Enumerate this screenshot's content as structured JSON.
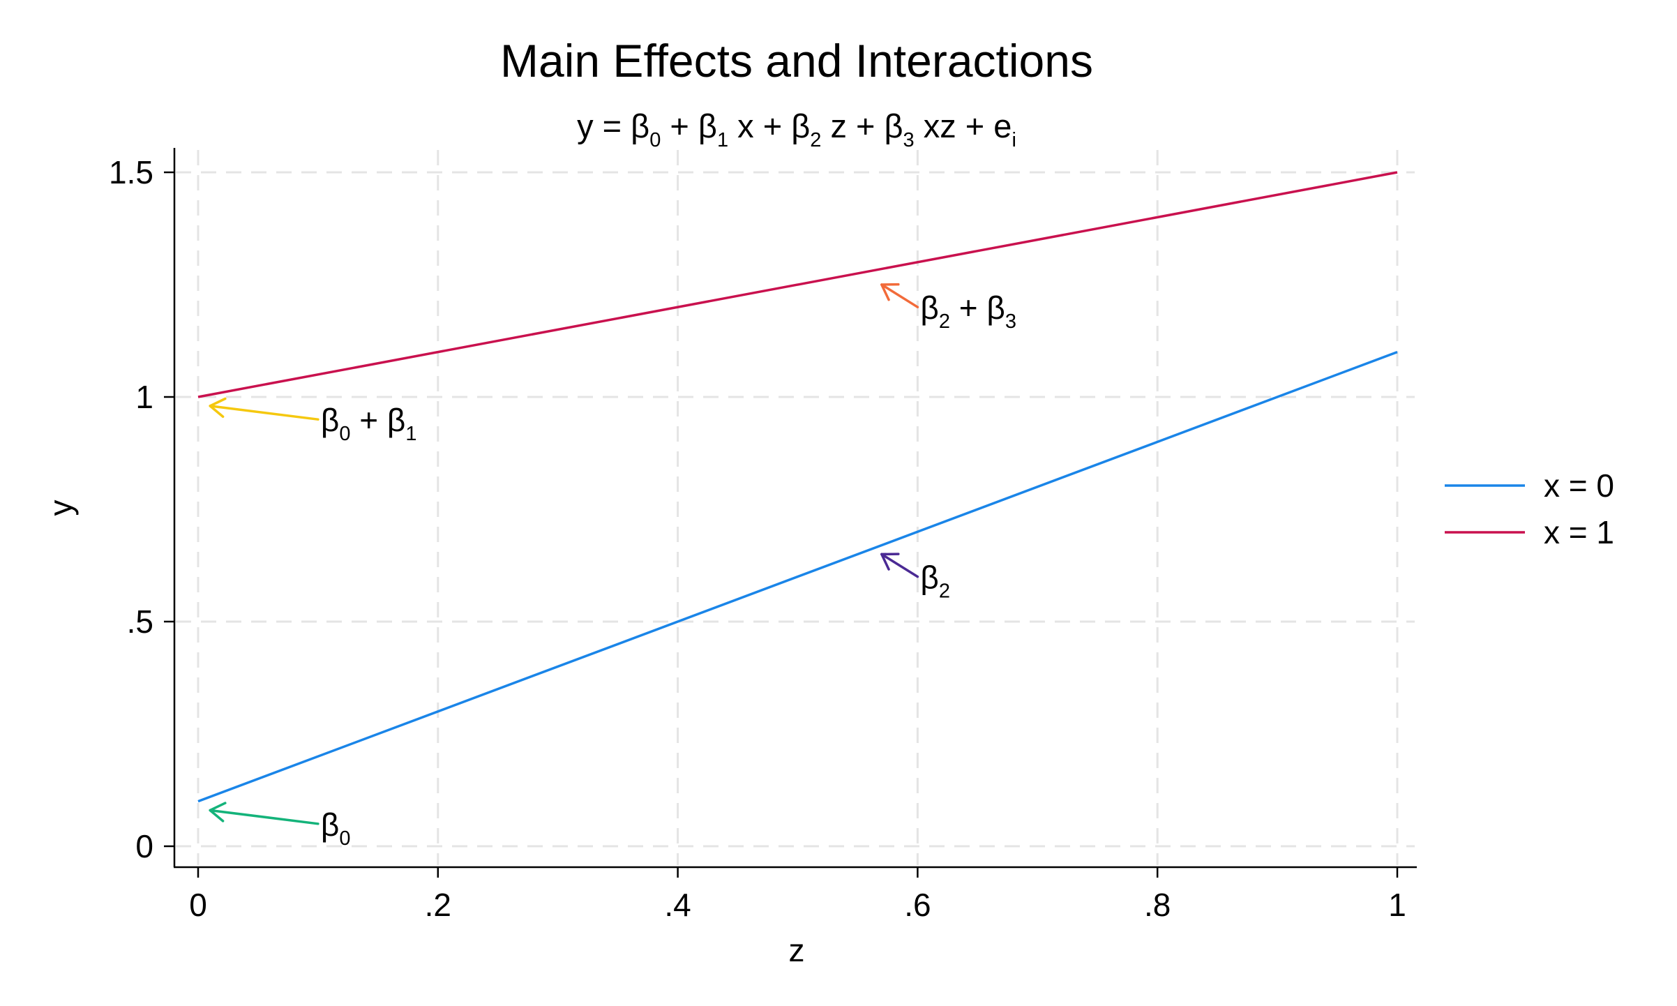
{
  "chart_data": {
    "type": "line",
    "title": "Main Effects and Interactions",
    "subtitle": "y = β0 + β1 x + β2 z + β3 xz + ei",
    "subtitle_parts": [
      {
        "t": "y = β"
      },
      {
        "t": "0",
        "sub": true
      },
      {
        "t": " + β"
      },
      {
        "t": "1",
        "sub": true
      },
      {
        "t": " x + β"
      },
      {
        "t": "2",
        "sub": true
      },
      {
        "t": " z + β"
      },
      {
        "t": "3",
        "sub": true
      },
      {
        "t": " xz + e"
      },
      {
        "t": "i",
        "sub": true
      }
    ],
    "xlabel": "z",
    "ylabel": "y",
    "xlim": [
      0,
      1
    ],
    "ylim": [
      0,
      1.5
    ],
    "x_ticks": [
      {
        "v": 0,
        "label": "0"
      },
      {
        "v": 0.2,
        "label": ".2"
      },
      {
        "v": 0.4,
        "label": ".4"
      },
      {
        "v": 0.6,
        "label": ".6"
      },
      {
        "v": 0.8,
        "label": ".8"
      },
      {
        "v": 1,
        "label": "1"
      }
    ],
    "y_ticks": [
      {
        "v": 0,
        "label": "0"
      },
      {
        "v": 0.5,
        "label": ".5"
      },
      {
        "v": 1,
        "label": "1"
      },
      {
        "v": 1.5,
        "label": "1.5"
      }
    ],
    "grid": true,
    "legend_position": "right",
    "series": [
      {
        "name": "x = 0",
        "color": "#1a85e8",
        "x": [
          0,
          1
        ],
        "y": [
          0.1,
          1.1
        ]
      },
      {
        "name": "x = 1",
        "color": "#c9114e",
        "x": [
          0,
          1
        ],
        "y": [
          1.0,
          1.5
        ]
      }
    ],
    "annotations": [
      {
        "id": "b0",
        "text": "β0",
        "parts": [
          {
            "t": "β"
          },
          {
            "t": "0",
            "sub": true
          }
        ],
        "color": "#14b37a",
        "from": [
          0.1,
          0.05
        ],
        "to": [
          0.01,
          0.08
        ]
      },
      {
        "id": "b0b1",
        "text": "β0 + β1",
        "parts": [
          {
            "t": "β"
          },
          {
            "t": "0",
            "sub": true
          },
          {
            "t": " + β"
          },
          {
            "t": "1",
            "sub": true
          }
        ],
        "color": "#f5c80f",
        "from": [
          0.1,
          0.95
        ],
        "to": [
          0.01,
          0.98
        ]
      },
      {
        "id": "b2",
        "text": "β2",
        "parts": [
          {
            "t": "β"
          },
          {
            "t": "2",
            "sub": true
          }
        ],
        "color": "#4b2a94",
        "from": [
          0.6,
          0.6
        ],
        "to": [
          0.57,
          0.65
        ]
      },
      {
        "id": "b2b3",
        "text": "β2 + β3",
        "parts": [
          {
            "t": "β"
          },
          {
            "t": "2",
            "sub": true
          },
          {
            "t": " + β"
          },
          {
            "t": "3",
            "sub": true
          }
        ],
        "color": "#f26b3a",
        "from": [
          0.6,
          1.2
        ],
        "to": [
          0.57,
          1.25
        ]
      }
    ]
  }
}
